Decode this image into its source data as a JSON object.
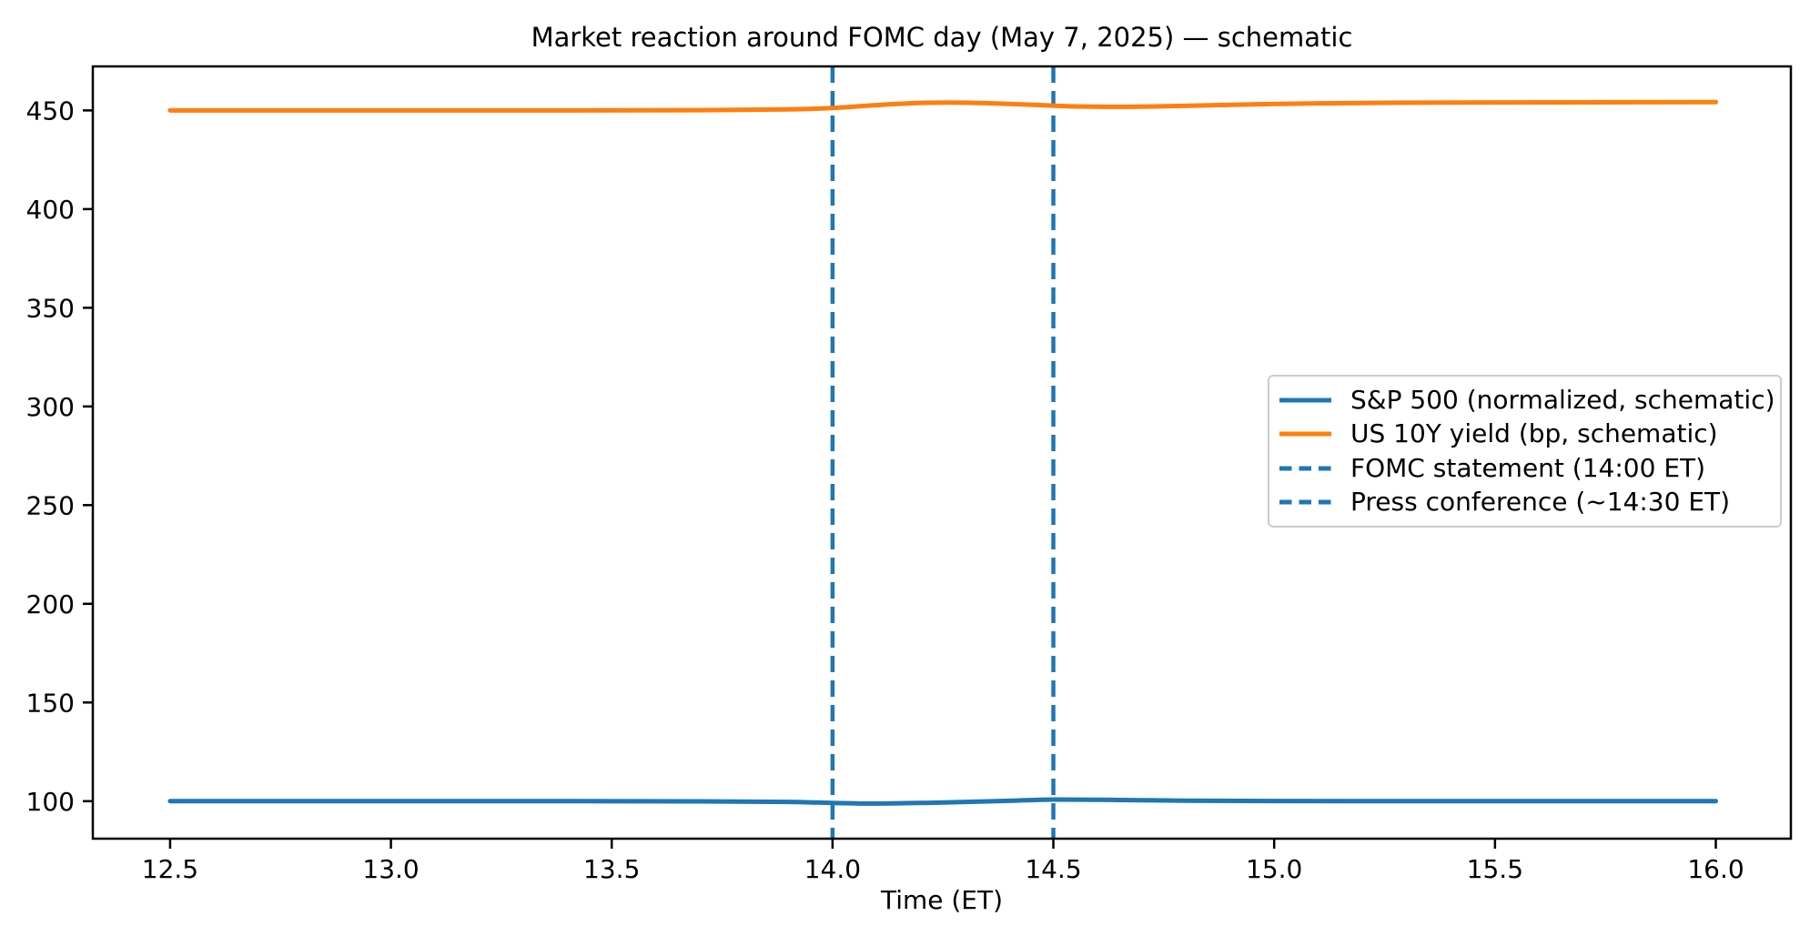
{
  "title": "Market reaction around FOMC day (May 7, 2025) — schematic",
  "colors": {
    "sp500_line": "#1f77b4",
    "yield_line": "#ff7f0e",
    "event_line": "#1f77b4",
    "axis": "#000000",
    "legend_border": "#cccccc",
    "background": "#ffffff"
  },
  "chart_data": {
    "type": "line",
    "title": "Market reaction around FOMC day (May 7, 2025) — schematic",
    "xlabel": "Time (ET)",
    "ylabel": "",
    "grid": false,
    "legend_position": "center right",
    "xlim": [
      12.325,
      16.17
    ],
    "ylim": [
      81,
      472.3
    ],
    "x_ticks": [
      12.5,
      13.0,
      13.5,
      14.0,
      14.5,
      15.0,
      15.5,
      16.0
    ],
    "x_tick_labels": [
      "12.5",
      "13.0",
      "13.5",
      "14.0",
      "14.5",
      "15.0",
      "15.5",
      "16.0"
    ],
    "y_ticks": [
      100,
      150,
      200,
      250,
      300,
      350,
      400,
      450
    ],
    "y_tick_labels": [
      "100",
      "150",
      "200",
      "250",
      "300",
      "350",
      "400",
      "450"
    ],
    "series": [
      {
        "id": "sp500",
        "name": "S&P 500 (normalized, schematic)",
        "color": "#1f77b4",
        "style": "solid",
        "x": [
          12.5,
          13.0,
          13.4,
          13.7,
          13.9,
          14.0,
          14.1,
          14.25,
          14.4,
          14.5,
          14.65,
          14.8,
          15.0,
          15.3,
          15.6,
          16.0
        ],
        "y": [
          100.0,
          100.0,
          100.0,
          99.9,
          99.6,
          99.1,
          98.8,
          99.3,
          100.2,
          100.8,
          100.6,
          100.25,
          100.05,
          100.0,
          100.0,
          100.0
        ]
      },
      {
        "id": "us10y",
        "name": "US 10Y yield (bp, schematic)",
        "color": "#ff7f0e",
        "style": "solid",
        "x": [
          12.5,
          13.0,
          13.4,
          13.7,
          13.9,
          14.0,
          14.1,
          14.2,
          14.3,
          14.45,
          14.55,
          14.7,
          14.9,
          15.1,
          15.4,
          15.7,
          16.0
        ],
        "y": [
          450.0,
          450.0,
          450.0,
          450.1,
          450.5,
          451.2,
          452.7,
          453.8,
          453.9,
          452.9,
          452.0,
          451.9,
          452.8,
          453.6,
          454.0,
          454.1,
          454.2
        ]
      }
    ],
    "vlines": [
      {
        "id": "fomc-statement",
        "name": "FOMC statement (14:00 ET)",
        "x": 14.0,
        "color": "#1f77b4",
        "style": "dashed"
      },
      {
        "id": "press-conference",
        "name": "Press conference (~14:30 ET)",
        "x": 14.5,
        "color": "#1f77b4",
        "style": "dashed"
      }
    ]
  }
}
